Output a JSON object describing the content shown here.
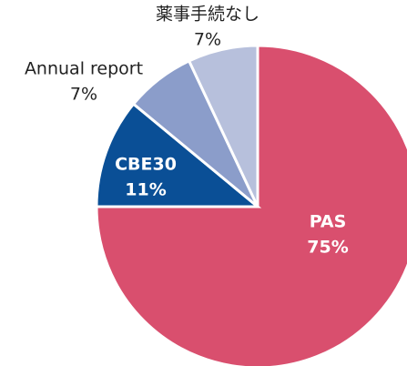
{
  "chart_data": {
    "type": "pie",
    "categories": [
      "PAS",
      "CBE30",
      "Annual report",
      "薬事手続なし"
    ],
    "values": [
      75,
      11,
      7,
      7
    ],
    "value_labels": [
      "75%",
      "11%",
      "7%",
      "7%"
    ],
    "colors": [
      "#d94f6e",
      "#0a4f96",
      "#8b9dca",
      "#b7c0dc"
    ]
  }
}
